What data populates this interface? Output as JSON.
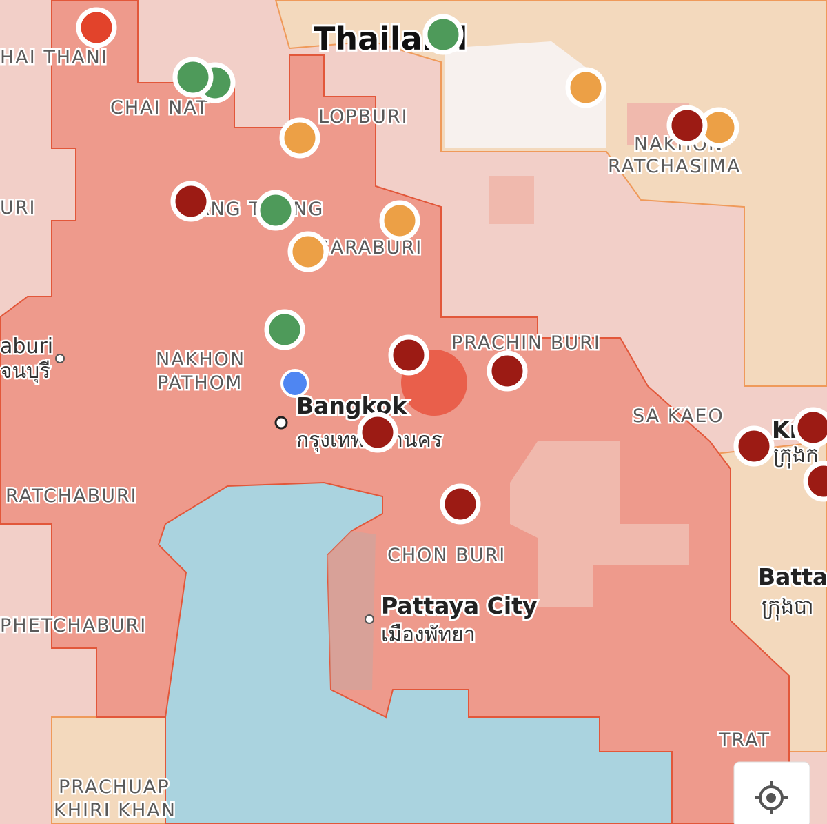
{
  "labels": [
    "Thailand",
    "HAI THANI",
    "CHAI NAT",
    "LOPBURI",
    "NAKHON",
    "RATCHASIMA",
    "URI",
    "ANG THONG",
    "SARABURI",
    "aburi",
    "จนบุรี",
    "NAKHON",
    "PATHOM",
    "Bangkok",
    "กรุงเทพมหานคร",
    "PRACHIN BURI",
    "SA KAEO",
    "Kr",
    "ក្រុងក",
    "RATCHABURI",
    "CHON BURI",
    "Battan",
    "ក្រុងបា",
    "Pattaya City",
    "เมืองพัทยา",
    "PHETCHABURI",
    "TRAT",
    "PRACHUAP",
    "KHIRI KHAN"
  ]
}
